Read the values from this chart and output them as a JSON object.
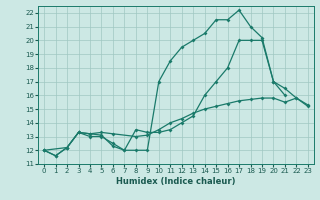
{
  "xlabel": "Humidex (Indice chaleur)",
  "bg_color": "#cce8e4",
  "grid_color": "#a0c8c2",
  "line_color": "#1a7a6a",
  "xlim": [
    -0.5,
    23.5
  ],
  "ylim": [
    11,
    22.5
  ],
  "yticks": [
    11,
    12,
    13,
    14,
    15,
    16,
    17,
    18,
    19,
    20,
    21,
    22
  ],
  "xticks": [
    0,
    1,
    2,
    3,
    4,
    5,
    6,
    7,
    8,
    9,
    10,
    11,
    12,
    13,
    14,
    15,
    16,
    17,
    18,
    19,
    20,
    21,
    22,
    23
  ],
  "line_top_x": [
    0,
    1,
    2,
    3,
    4,
    5,
    6,
    7,
    8,
    9,
    10,
    11,
    12,
    13,
    14,
    15,
    16,
    17,
    18,
    19,
    20,
    21
  ],
  "line_top_y": [
    12.0,
    11.6,
    12.2,
    13.3,
    13.2,
    13.1,
    12.3,
    12.0,
    12.0,
    12.0,
    17.0,
    18.5,
    19.5,
    20.0,
    20.5,
    21.5,
    21.5,
    22.2,
    21.0,
    20.2,
    17.0,
    16.0
  ],
  "line_mid_x": [
    0,
    1,
    2,
    3,
    4,
    5,
    6,
    7,
    8,
    9,
    10,
    11,
    12,
    13,
    14,
    15,
    16,
    17,
    18,
    19,
    20,
    21,
    22,
    23
  ],
  "line_mid_y": [
    12.0,
    11.6,
    12.2,
    13.3,
    13.0,
    13.0,
    12.5,
    12.0,
    13.5,
    13.3,
    13.3,
    13.5,
    14.0,
    14.5,
    16.0,
    17.0,
    18.0,
    20.0,
    20.0,
    20.0,
    17.0,
    16.5,
    15.8,
    15.2
  ],
  "line_bot_x": [
    0,
    2,
    3,
    4,
    5,
    6,
    8,
    9,
    10,
    11,
    12,
    13,
    14,
    15,
    16,
    17,
    18,
    19,
    20,
    21,
    22,
    23
  ],
  "line_bot_y": [
    12.0,
    12.2,
    13.3,
    13.2,
    13.3,
    13.2,
    13.0,
    13.1,
    13.5,
    14.0,
    14.3,
    14.7,
    15.0,
    15.2,
    15.4,
    15.6,
    15.7,
    15.8,
    15.8,
    15.5,
    15.8,
    15.3
  ]
}
